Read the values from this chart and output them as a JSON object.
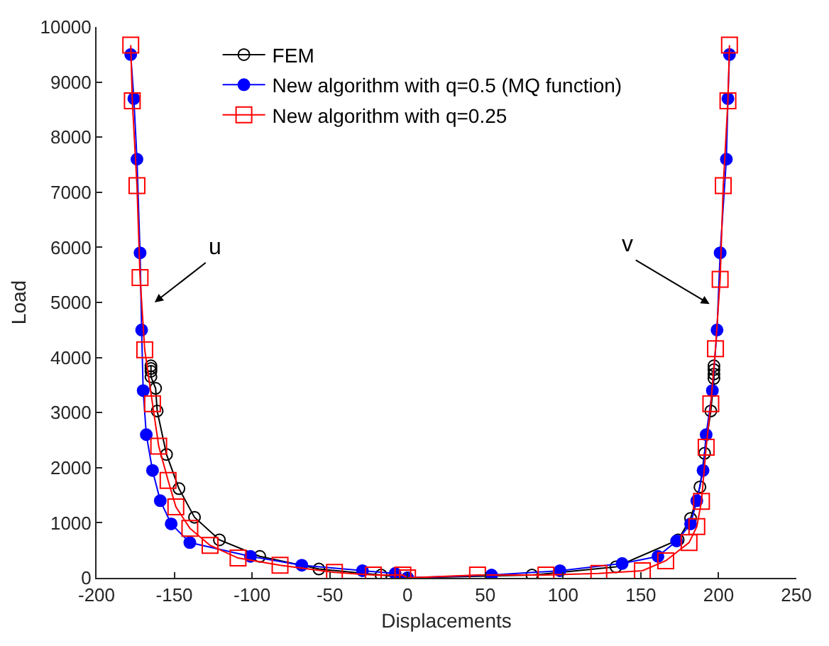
{
  "chart_data": {
    "type": "line",
    "xlabel": "Displacements",
    "ylabel": "Load",
    "xlim": [
      -200,
      250
    ],
    "xticks": [
      -200,
      -150,
      -100,
      -50,
      0,
      50,
      100,
      150,
      200,
      250
    ],
    "ylim": [
      0,
      10000
    ],
    "yticks": [
      0,
      1000,
      2000,
      3000,
      4000,
      5000,
      6000,
      7000,
      8000,
      9000,
      10000
    ],
    "grid": false,
    "legend": "top left",
    "series": [
      {
        "name": "FEM",
        "color": "#000000",
        "marker": "circle",
        "x": [
          -165,
          -165,
          -165,
          -165,
          -162,
          -161,
          -155,
          -147,
          -137,
          -121,
          -95,
          -57,
          -17,
          0,
          80,
          134,
          174,
          182,
          188,
          191,
          195,
          197,
          197,
          197,
          197
        ],
        "values": [
          3850,
          3800,
          3750,
          3650,
          3440,
          3030,
          2240,
          1620,
          1100,
          690,
          390,
          160,
          50,
          0,
          50,
          200,
          690,
          1080,
          1650,
          2260,
          3030,
          3620,
          3700,
          3780,
          3850
        ]
      },
      {
        "name": "New algorithm with q=0.5 (MQ function)",
        "color": "#0000ff",
        "marker": "circle-filled",
        "x": [
          -178,
          -176,
          -174,
          -172,
          -171,
          -170,
          -168,
          -164,
          -159,
          -152,
          -140,
          -101,
          -68,
          -29,
          -8,
          0,
          54,
          98,
          138,
          161,
          173,
          182,
          186,
          190,
          192,
          196,
          199,
          201,
          205,
          206,
          207
        ],
        "values": [
          9500,
          8700,
          7600,
          5900,
          4500,
          3400,
          2600,
          1950,
          1400,
          980,
          640,
          390,
          230,
          130,
          80,
          0,
          50,
          130,
          260,
          390,
          670,
          980,
          1400,
          1950,
          2600,
          3400,
          4500,
          5900,
          7600,
          8700,
          9500
        ]
      },
      {
        "name": "New algorithm with q=0.25",
        "color": "#ff0000",
        "marker": "square",
        "x": [
          -178,
          -177,
          -174,
          -172,
          -169,
          -164,
          -160,
          -154,
          -149,
          -140,
          -127,
          -109,
          -82,
          -47,
          -22,
          -3,
          0,
          45,
          89,
          123,
          151,
          166,
          181,
          186,
          189,
          192,
          195,
          198,
          201,
          203,
          206,
          207
        ],
        "values": [
          9670,
          8660,
          7120,
          5450,
          4140,
          3160,
          2390,
          1770,
          1290,
          900,
          590,
          360,
          230,
          100,
          50,
          50,
          0,
          50,
          50,
          80,
          130,
          310,
          640,
          930,
          1390,
          2370,
          3160,
          4160,
          5420,
          7120,
          8660,
          9670
        ]
      }
    ],
    "annotations": [
      "u",
      "v"
    ]
  }
}
